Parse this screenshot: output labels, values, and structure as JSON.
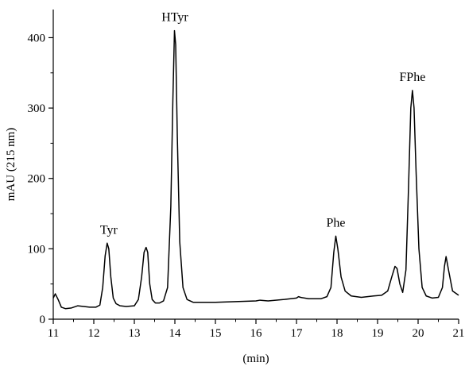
{
  "chart_data": {
    "type": "line",
    "title": "",
    "xlabel": "(min)",
    "ylabel": "mAU (215 nm)",
    "xlim": [
      11,
      21
    ],
    "ylim": [
      0,
      440
    ],
    "xticks": [
      11,
      12,
      13,
      14,
      15,
      16,
      17,
      18,
      19,
      20,
      21
    ],
    "yticks": [
      0,
      100,
      200,
      300,
      400
    ],
    "grid": false,
    "legend": "none",
    "line_color": "#000000",
    "series": [
      {
        "x": [
          11.0,
          11.05,
          11.12,
          11.2,
          11.3,
          11.45,
          11.6,
          11.75,
          11.9,
          12.05,
          12.15,
          12.22,
          12.28,
          12.33,
          12.37,
          12.42,
          12.48,
          12.55,
          12.65,
          12.8,
          13.0,
          13.1,
          13.18,
          13.24,
          13.29,
          13.33,
          13.38,
          13.44,
          13.52,
          13.62,
          13.72,
          13.82,
          13.9,
          13.95,
          13.99,
          14.02,
          14.06,
          14.12,
          14.2,
          14.3,
          14.45,
          14.7,
          15.0,
          15.5,
          16.0,
          16.1,
          16.3,
          16.7,
          17.0,
          17.05,
          17.1,
          17.3,
          17.6,
          17.75,
          17.85,
          17.92,
          17.97,
          18.02,
          18.1,
          18.2,
          18.35,
          18.6,
          18.9,
          19.1,
          19.25,
          19.35,
          19.43,
          19.48,
          19.55,
          19.62,
          19.7,
          19.76,
          19.82,
          19.86,
          19.9,
          19.95,
          20.02,
          20.1,
          20.2,
          20.35,
          20.5,
          20.6,
          20.65,
          20.69,
          20.75,
          20.85,
          21.0
        ],
        "y": [
          30,
          36,
          28,
          17,
          15,
          16,
          19,
          18,
          17,
          17,
          20,
          45,
          90,
          108,
          100,
          60,
          30,
          22,
          19,
          18,
          19,
          28,
          60,
          95,
          102,
          95,
          50,
          28,
          23,
          23,
          26,
          45,
          160,
          310,
          410,
          390,
          260,
          110,
          45,
          28,
          24,
          24,
          24,
          25,
          26,
          27,
          26,
          28,
          30,
          32,
          31,
          29,
          29,
          32,
          45,
          95,
          118,
          100,
          60,
          40,
          33,
          31,
          33,
          34,
          40,
          60,
          75,
          72,
          50,
          38,
          70,
          180,
          300,
          325,
          300,
          210,
          100,
          45,
          33,
          30,
          31,
          45,
          75,
          89,
          70,
          40,
          34
        ]
      }
    ],
    "annotations": [
      {
        "text": "Tyr",
        "x": 12.37,
        "y": 108
      },
      {
        "text": "HTyr",
        "x": 14.0,
        "y": 410
      },
      {
        "text": "Phe",
        "x": 17.97,
        "y": 118
      },
      {
        "text": "FPhe",
        "x": 19.86,
        "y": 325
      }
    ]
  }
}
